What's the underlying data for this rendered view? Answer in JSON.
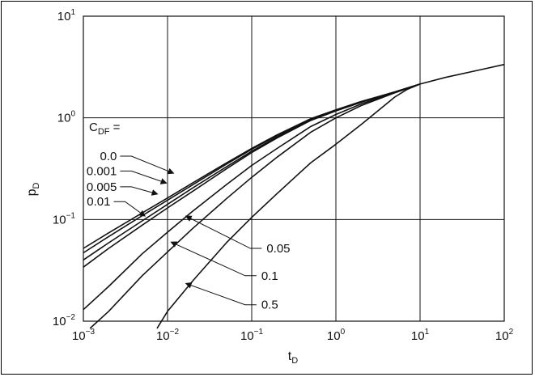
{
  "chart_data": {
    "type": "line",
    "x_scale": "log",
    "y_scale": "log",
    "xlim": [
      0.001,
      100
    ],
    "ylim": [
      0.01,
      10
    ],
    "grid": true,
    "xlabel": "t",
    "xlabel_sub": "D",
    "ylabel": "p",
    "ylabel_sub": "D",
    "x_ticks": [
      {
        "base": "10",
        "exp": "−3",
        "value": 0.001
      },
      {
        "base": "10",
        "exp": "−2",
        "value": 0.01
      },
      {
        "base": "10",
        "exp": "−1",
        "value": 0.1
      },
      {
        "base": "10",
        "exp": "0",
        "value": 1
      },
      {
        "base": "10",
        "exp": "1",
        "value": 10
      },
      {
        "base": "10",
        "exp": "2",
        "value": 100
      }
    ],
    "y_ticks": [
      {
        "base": "10",
        "exp": "−2",
        "value": 0.01
      },
      {
        "base": "10",
        "exp": "−1",
        "value": 0.1
      },
      {
        "base": "10",
        "exp": "0",
        "value": 1
      },
      {
        "base": "10",
        "exp": "1",
        "value": 10
      }
    ],
    "legend_title": "C",
    "legend_title_sub": "DF",
    "legend_title_suffix": " =",
    "series": [
      {
        "label": "0.0",
        "points": [
          [
            0.001,
            0.052
          ],
          [
            0.002,
            0.074
          ],
          [
            0.005,
            0.116
          ],
          [
            0.01,
            0.163
          ],
          [
            0.02,
            0.23
          ],
          [
            0.05,
            0.36
          ],
          [
            0.1,
            0.5
          ],
          [
            0.2,
            0.68
          ],
          [
            0.5,
            0.98
          ],
          [
            1,
            1.2
          ],
          [
            2,
            1.45
          ],
          [
            5,
            1.8
          ],
          [
            10,
            2.15
          ],
          [
            20,
            2.5
          ],
          [
            50,
            2.95
          ],
          [
            100,
            3.35
          ]
        ]
      },
      {
        "label": "0.001",
        "points": [
          [
            0.001,
            0.047
          ],
          [
            0.002,
            0.068
          ],
          [
            0.005,
            0.109
          ],
          [
            0.01,
            0.155
          ],
          [
            0.02,
            0.22
          ],
          [
            0.05,
            0.35
          ],
          [
            0.1,
            0.49
          ],
          [
            0.2,
            0.67
          ],
          [
            0.5,
            0.97
          ],
          [
            1,
            1.19
          ],
          [
            2,
            1.44
          ],
          [
            5,
            1.8
          ],
          [
            10,
            2.15
          ]
        ]
      },
      {
        "label": "0.005",
        "points": [
          [
            0.001,
            0.04
          ],
          [
            0.002,
            0.059
          ],
          [
            0.005,
            0.097
          ],
          [
            0.01,
            0.141
          ],
          [
            0.02,
            0.205
          ],
          [
            0.05,
            0.33
          ],
          [
            0.1,
            0.47
          ],
          [
            0.2,
            0.65
          ],
          [
            0.5,
            0.95
          ],
          [
            1,
            1.18
          ],
          [
            2,
            1.43
          ],
          [
            5,
            1.79
          ],
          [
            10,
            2.15
          ]
        ]
      },
      {
        "label": "0.01",
        "points": [
          [
            0.001,
            0.034
          ],
          [
            0.002,
            0.052
          ],
          [
            0.005,
            0.088
          ],
          [
            0.01,
            0.13
          ],
          [
            0.02,
            0.19
          ],
          [
            0.05,
            0.315
          ],
          [
            0.1,
            0.455
          ],
          [
            0.2,
            0.635
          ],
          [
            0.5,
            0.94
          ],
          [
            1,
            1.17
          ],
          [
            2,
            1.42
          ],
          [
            5,
            1.79
          ],
          [
            10,
            2.15
          ]
        ]
      },
      {
        "label": "0.05",
        "points": [
          [
            0.001,
            0.013
          ],
          [
            0.002,
            0.022
          ],
          [
            0.005,
            0.046
          ],
          [
            0.01,
            0.075
          ],
          [
            0.02,
            0.121
          ],
          [
            0.05,
            0.22
          ],
          [
            0.1,
            0.34
          ],
          [
            0.2,
            0.5
          ],
          [
            0.5,
            0.82
          ],
          [
            1,
            1.08
          ],
          [
            2,
            1.37
          ],
          [
            5,
            1.77
          ],
          [
            10,
            2.15
          ]
        ]
      },
      {
        "label": "0.1",
        "points": [
          [
            0.0012,
            0.0085
          ],
          [
            0.002,
            0.0125
          ],
          [
            0.005,
            0.028
          ],
          [
            0.01,
            0.048
          ],
          [
            0.02,
            0.082
          ],
          [
            0.05,
            0.16
          ],
          [
            0.1,
            0.26
          ],
          [
            0.2,
            0.41
          ],
          [
            0.5,
            0.72
          ],
          [
            1,
            1.0
          ],
          [
            2,
            1.32
          ],
          [
            5,
            1.76
          ],
          [
            10,
            2.15
          ]
        ]
      },
      {
        "label": "0.5",
        "points": [
          [
            0.0075,
            0.0085
          ],
          [
            0.01,
            0.0125
          ],
          [
            0.02,
            0.025
          ],
          [
            0.05,
            0.059
          ],
          [
            0.1,
            0.105
          ],
          [
            0.2,
            0.18
          ],
          [
            0.5,
            0.36
          ],
          [
            1,
            0.55
          ],
          [
            2,
            0.86
          ],
          [
            5,
            1.6
          ],
          [
            7,
            1.9
          ],
          [
            10,
            2.15
          ]
        ]
      }
    ],
    "annotations": [
      {
        "text": "0.0",
        "text_at": [
          0.0025,
          0.42
        ],
        "arrow_to": [
          0.0118,
          0.285
        ]
      },
      {
        "text": "0.001",
        "text_at": [
          0.0025,
          0.3
        ],
        "arrow_to": [
          0.0097,
          0.228
        ]
      },
      {
        "text": "0.005",
        "text_at": [
          0.0025,
          0.21
        ],
        "arrow_to": [
          0.0076,
          0.178
        ]
      },
      {
        "text": "0.01",
        "text_at": [
          0.0021,
          0.15
        ],
        "arrow_to": [
          0.0054,
          0.108
        ]
      },
      {
        "text": "0.05",
        "text_at": [
          0.15,
          0.052
        ],
        "arrow_to": [
          0.0165,
          0.108
        ]
      },
      {
        "text": "0.1",
        "text_at": [
          0.13,
          0.028
        ],
        "arrow_to": [
          0.011,
          0.06
        ]
      },
      {
        "text": "0.5",
        "text_at": [
          0.13,
          0.0145
        ],
        "arrow_to": [
          0.0165,
          0.0235
        ]
      }
    ]
  }
}
